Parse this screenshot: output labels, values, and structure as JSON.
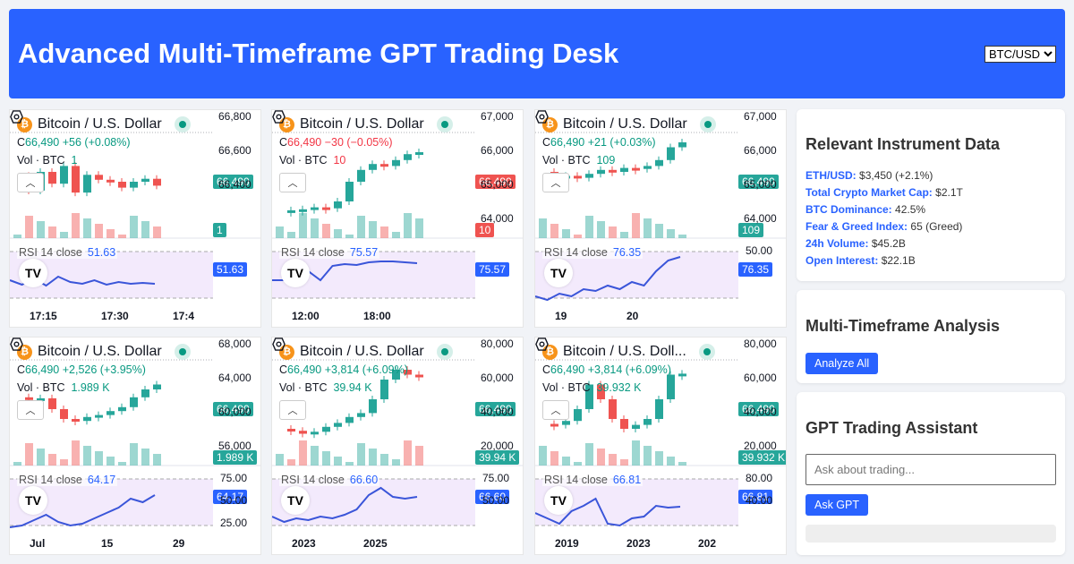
{
  "header": {
    "title": "Advanced Multi-Timeframe GPT Trading Desk",
    "symbol_select": "BTC/USD"
  },
  "charts": [
    {
      "title": "Bitcoin / U.S. Dollar",
      "close_prefix": "C",
      "close": "66,490",
      "change": "+56 (+0.08%)",
      "dir": "up",
      "vol_label": "Vol · BTC",
      "vol": "1",
      "rsi_label": "RSI",
      "rsi_params": "14 close",
      "rsi": "51.63",
      "price_tag": "66,490",
      "vol_tag": "1",
      "y_ticks": [
        "66,800",
        "66,600",
        "66,400"
      ],
      "rsi_ticks": [],
      "x_ticks": [
        "17:15",
        "17:30",
        "17:4"
      ]
    },
    {
      "title": "Bitcoin / U.S. Dollar",
      "close_prefix": "C",
      "close": "66,490",
      "change": "−30 (−0.05%)",
      "dir": "dn",
      "vol_label": "Vol · BTC",
      "vol": "10",
      "rsi_label": "RSI",
      "rsi_params": "14 close",
      "rsi": "75.57",
      "price_tag": "66,490",
      "vol_tag": "10",
      "y_ticks": [
        "67,000",
        "66,000",
        "65,000",
        "64,000"
      ],
      "rsi_ticks": [],
      "x_ticks": [
        "12:00",
        "18:00"
      ]
    },
    {
      "title": "Bitcoin / U.S. Dollar",
      "close_prefix": "C",
      "close": "66,490",
      "change": "+21 (+0.03%)",
      "dir": "up",
      "vol_label": "Vol · BTC",
      "vol": "109",
      "rsi_label": "RSI",
      "rsi_params": "14 close",
      "rsi": "76.35",
      "price_tag": "66,490",
      "vol_tag": "109",
      "y_ticks": [
        "67,000",
        "66,000",
        "65,000",
        "64,000"
      ],
      "rsi_ticks": [
        "50.00"
      ],
      "x_ticks": [
        "19",
        "20"
      ]
    },
    {
      "title": "Bitcoin / U.S. Dollar",
      "close_prefix": "C",
      "close": "66,490",
      "change": "+2,526 (+3.95%)",
      "dir": "up",
      "vol_label": "Vol · BTC",
      "vol": "1.989 K",
      "rsi_label": "RSI",
      "rsi_params": "14 close",
      "rsi": "64.17",
      "price_tag": "66,490",
      "vol_tag": "1.989 K",
      "y_ticks": [
        "68,000",
        "64,000",
        "60,000",
        "56,000"
      ],
      "rsi_ticks": [
        "75.00",
        "50.00",
        "25.00"
      ],
      "x_ticks": [
        "Jul",
        "15",
        "29"
      ]
    },
    {
      "title": "Bitcoin / U.S. Dollar",
      "close_prefix": "C",
      "close": "66,490",
      "change": "+3,814 (+6.09%)",
      "dir": "up",
      "vol_label": "Vol · BTC",
      "vol": "39.94 K",
      "rsi_label": "RSI",
      "rsi_params": "14 close",
      "rsi": "66.60",
      "price_tag": "66,490",
      "vol_tag": "39.94 K",
      "y_ticks": [
        "80,000",
        "60,000",
        "40,000",
        "20,000"
      ],
      "rsi_ticks": [
        "75.00",
        "50.00"
      ],
      "x_ticks": [
        "2023",
        "2025"
      ]
    },
    {
      "title": "Bitcoin / U.S. Doll...",
      "close_prefix": "C",
      "close": "66,490",
      "change": "+3,814 (+6.09%)",
      "dir": "up",
      "vol_label": "Vol · BTC",
      "vol": "39.932 K",
      "rsi_label": "RSI",
      "rsi_params": "14 close",
      "rsi": "66.81",
      "price_tag": "66,490",
      "vol_tag": "39.932 K",
      "y_ticks": [
        "80,000",
        "60,000",
        "40,000",
        "20,000"
      ],
      "rsi_ticks": [
        "80.00",
        "40.00"
      ],
      "x_ticks": [
        "2019",
        "2023",
        "202"
      ]
    }
  ],
  "instrument": {
    "title": "Relevant Instrument Data",
    "rows": [
      {
        "label": "ETH/USD:",
        "value": "$3,450 (+2.1%)"
      },
      {
        "label": "Total Crypto Market Cap:",
        "value": "$2.1T"
      },
      {
        "label": "BTC Dominance:",
        "value": "42.5%"
      },
      {
        "label": "Fear & Greed Index:",
        "value": "65 (Greed)"
      },
      {
        "label": "24h Volume:",
        "value": "$45.2B"
      },
      {
        "label": "Open Interest:",
        "value": "$22.1B"
      }
    ]
  },
  "analysis": {
    "title": "Multi-Timeframe Analysis",
    "button": "Analyze All"
  },
  "assistant": {
    "title": "GPT Trading Assistant",
    "placeholder": "Ask about trading...",
    "button": "Ask GPT",
    "response": ""
  },
  "colors": {
    "accent": "#2962ff",
    "up": "#26a69a",
    "down": "#ef5350",
    "rsi_fill": "#f3eafc"
  }
}
